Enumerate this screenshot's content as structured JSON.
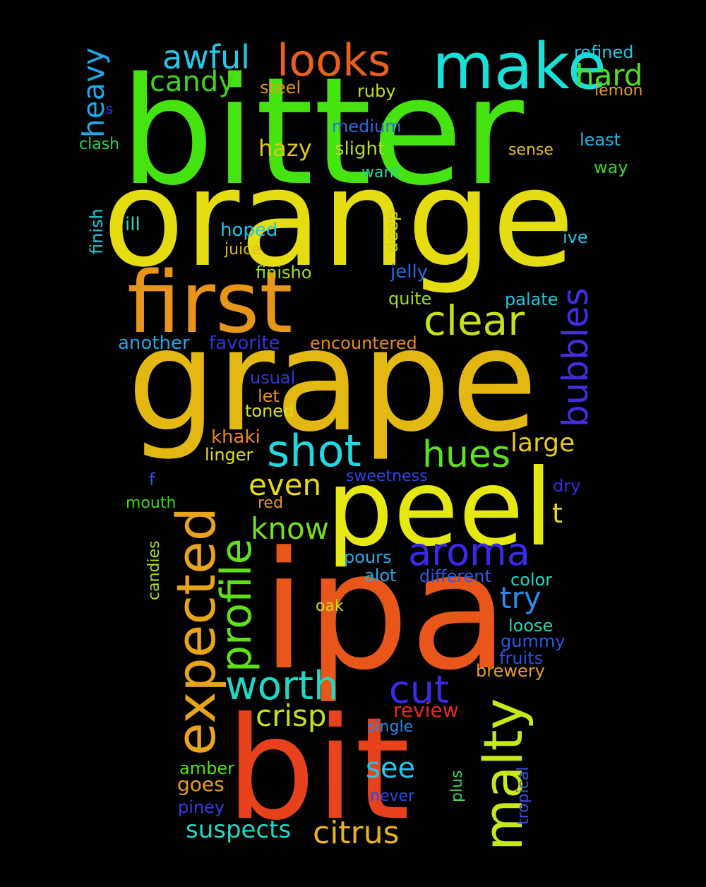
{
  "background": "#000000",
  "words": [
    {
      "text": "bitter",
      "color": "#45e310"
    },
    {
      "text": "orange",
      "color": "#e6dc12"
    },
    {
      "text": "grape",
      "color": "#e3b812"
    },
    {
      "text": "ipa",
      "color": "#e8561a"
    },
    {
      "text": "bit",
      "color": "#e8421c"
    },
    {
      "text": "peel",
      "color": "#e6e812"
    },
    {
      "text": "first",
      "color": "#e8961a"
    },
    {
      "text": "make",
      "color": "#18e0d8"
    },
    {
      "text": "looks",
      "color": "#e8601a"
    },
    {
      "text": "awful",
      "color": "#22c8e8"
    },
    {
      "text": "candy",
      "color": "#3ed61a"
    },
    {
      "text": "hard",
      "color": "#4ee01a"
    },
    {
      "text": "refined",
      "color": "#20c8e0"
    },
    {
      "text": "lemon",
      "color": "#e8a01a"
    },
    {
      "text": "steel",
      "color": "#e89a1c"
    },
    {
      "text": "ruby",
      "color": "#c8e018"
    },
    {
      "text": "heavy",
      "color": "#1ea8e8"
    },
    {
      "text": "s",
      "color": "#2a40e8"
    },
    {
      "text": "clash",
      "color": "#22d858"
    },
    {
      "text": "medium",
      "color": "#2a6ae8"
    },
    {
      "text": "hazy",
      "color": "#e0c818"
    },
    {
      "text": "slight",
      "color": "#b8e018"
    },
    {
      "text": "want",
      "color": "#20d8a0"
    },
    {
      "text": "sense",
      "color": "#e8c018"
    },
    {
      "text": "least",
      "color": "#20b8e8"
    },
    {
      "text": "way",
      "color": "#3ed61a"
    },
    {
      "text": "finish",
      "color": "#22c8d8"
    },
    {
      "text": "ill",
      "color": "#20d8c0"
    },
    {
      "text": "hoped",
      "color": "#20c8e8"
    },
    {
      "text": "juice",
      "color": "#e0b818"
    },
    {
      "text": "deep",
      "color": "#c8d818"
    },
    {
      "text": "ive",
      "color": "#20c8e8"
    },
    {
      "text": "finisho",
      "color": "#a8e018"
    },
    {
      "text": "jelly",
      "color": "#2a6ae8"
    },
    {
      "text": "quite",
      "color": "#a0e018"
    },
    {
      "text": "palate",
      "color": "#20c8e0"
    },
    {
      "text": "clear",
      "color": "#c8e018"
    },
    {
      "text": "bubbles",
      "color": "#4a2ae0"
    },
    {
      "text": "another",
      "color": "#20a8e8"
    },
    {
      "text": "favorite",
      "color": "#3030e0"
    },
    {
      "text": "encountered",
      "color": "#e88c1a"
    },
    {
      "text": "usual",
      "color": "#2a3ae0"
    },
    {
      "text": "let",
      "color": "#e8901a"
    },
    {
      "text": "toned",
      "color": "#d8e018"
    },
    {
      "text": "shot",
      "color": "#20d8e0"
    },
    {
      "text": "hues",
      "color": "#60e018"
    },
    {
      "text": "large",
      "color": "#e8c818"
    },
    {
      "text": "khaki",
      "color": "#e8861a"
    },
    {
      "text": "linger",
      "color": "#e0e018"
    },
    {
      "text": "expected",
      "color": "#e8a41a"
    },
    {
      "text": "profile",
      "color": "#60e018"
    },
    {
      "text": "even",
      "color": "#e8d818"
    },
    {
      "text": "sweetness",
      "color": "#2a48e8"
    },
    {
      "text": "f",
      "color": "#2a5ae8"
    },
    {
      "text": "dry",
      "color": "#3a2ae0"
    },
    {
      "text": "mouth",
      "color": "#3ed61a"
    },
    {
      "text": "red",
      "color": "#e8961a"
    },
    {
      "text": "know",
      "color": "#78e018"
    },
    {
      "text": "t",
      "color": "#e8d818"
    },
    {
      "text": "aroma",
      "color": "#3a2ae8"
    },
    {
      "text": "candies",
      "color": "#b0e018"
    },
    {
      "text": "pours",
      "color": "#20b0e8"
    },
    {
      "text": "alot",
      "color": "#20b0e8"
    },
    {
      "text": "different",
      "color": "#2a5ae8"
    },
    {
      "text": "color",
      "color": "#20d8c8"
    },
    {
      "text": "try",
      "color": "#2a8ae8"
    },
    {
      "text": "oak",
      "color": "#d0e018"
    },
    {
      "text": "loose",
      "color": "#20d8b8"
    },
    {
      "text": "gummy",
      "color": "#2a5ae8"
    },
    {
      "text": "fruits",
      "color": "#2a50e8"
    },
    {
      "text": "malty",
      "color": "#c8e818"
    },
    {
      "text": "worth",
      "color": "#20d8c8"
    },
    {
      "text": "cut",
      "color": "#3a2ae8"
    },
    {
      "text": "brewery",
      "color": "#e8a01a"
    },
    {
      "text": "crisp",
      "color": "#c8e018"
    },
    {
      "text": "review",
      "color": "#e82a1a"
    },
    {
      "text": "single",
      "color": "#2a8ae8"
    },
    {
      "text": "see",
      "color": "#20c8e8"
    },
    {
      "text": "amber",
      "color": "#58e018"
    },
    {
      "text": "goes",
      "color": "#e8a01a"
    },
    {
      "text": "piney",
      "color": "#3a3ae8"
    },
    {
      "text": "never",
      "color": "#2a48e8"
    },
    {
      "text": "plus",
      "color": "#3ed660"
    },
    {
      "text": "tropical",
      "color": "#3a50e8"
    },
    {
      "text": "suspects",
      "color": "#20d8c8"
    },
    {
      "text": "citrus",
      "color": "#e8b41a"
    }
  ]
}
